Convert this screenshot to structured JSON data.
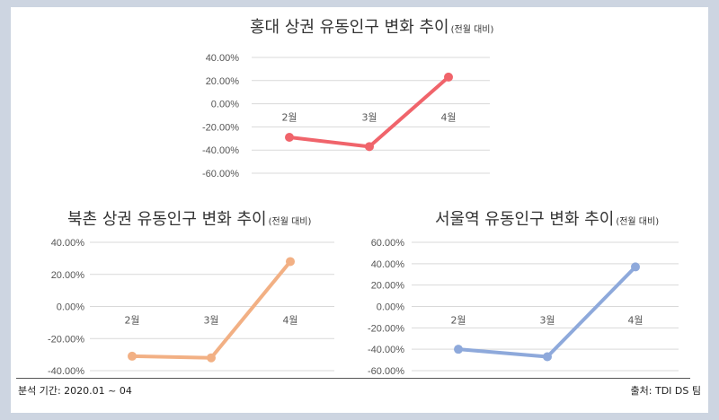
{
  "chart_data": [
    {
      "type": "line",
      "title": "홍대 상권 유동인구 변화 추이",
      "subtitle": "(전월 대비)",
      "categories": [
        "2월",
        "3월",
        "4월"
      ],
      "values": [
        -0.29,
        -0.37,
        0.23
      ],
      "yticks": [
        "40.00%",
        "20.00%",
        "0.00%",
        "-20.00%",
        "-40.00%",
        "-60.00%"
      ],
      "ylim": [
        -0.6,
        0.4
      ],
      "grid": true,
      "color": "#f0646b"
    },
    {
      "type": "line",
      "title": "북촌 상권 유동인구 변화 추이",
      "subtitle": "(전월 대비)",
      "categories": [
        "2월",
        "3월",
        "4월"
      ],
      "values": [
        -0.31,
        -0.32,
        0.28
      ],
      "yticks": [
        "40.00%",
        "20.00%",
        "0.00%",
        "-20.00%",
        "-40.00%"
      ],
      "ylim": [
        -0.4,
        0.4
      ],
      "grid": true,
      "color": "#f2b084"
    },
    {
      "type": "line",
      "title": "서울역 유동인구 변화 추이",
      "subtitle": "(전월 대비)",
      "categories": [
        "2월",
        "3월",
        "4월"
      ],
      "values": [
        -0.4,
        -0.47,
        0.37
      ],
      "yticks": [
        "60.00%",
        "40.00%",
        "20.00%",
        "0.00%",
        "-20.00%",
        "-40.00%",
        "-60.00%"
      ],
      "ylim": [
        -0.6,
        0.6
      ],
      "grid": true,
      "color": "#8ea9db"
    }
  ],
  "footer": {
    "period": "분석 기간: 2020.01 ~ 04",
    "source": "출처: TDI DS 팀"
  }
}
